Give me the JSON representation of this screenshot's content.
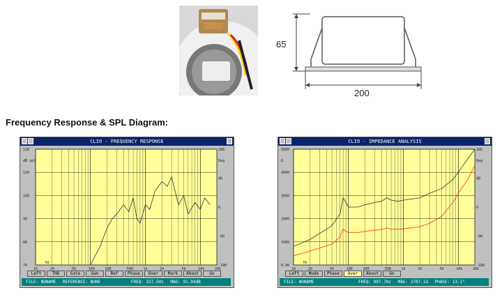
{
  "dimensions": {
    "height_label": "65",
    "width_label": "200"
  },
  "section_title": "Frequency Response & SPL Diagram:",
  "windows": [
    {
      "title": "CLIO - FREQUENCY RESPONSE",
      "buttons": [
        "Left",
        "THD",
        "Gate",
        "Gen",
        "Ref",
        "Phase",
        "Over",
        "Mark",
        "About",
        "Go"
      ],
      "status": {
        "file": "FILE: NONAME",
        "reference": "REFERENCE: NONE",
        "freq": "FREQ: 327.5Hz",
        "value": "MAG: 91.94dB"
      },
      "left_ticks": [
        "120",
        "110",
        "100",
        "90",
        "80",
        "70"
      ],
      "left_unit": "dB spl",
      "right_ticks": [
        "180",
        "90",
        "0",
        "-90",
        "-180"
      ],
      "right_unit": "Deg",
      "x_ticks": [
        "10",
        "20",
        "50",
        "100",
        "200",
        "500",
        "1k",
        "2k",
        "5k",
        "10k",
        "20k"
      ],
      "x_unit": "Hz"
    },
    {
      "title": "CLIO - IMPEDANCE ANALYSIS",
      "buttons": [
        "Left",
        "Mode",
        "Phase",
        "Over",
        "About",
        "Go"
      ],
      "active_button": "Over",
      "status": {
        "file": "FILE: NONAME",
        "freq": "FREQ: 997.7Hz",
        "value": "MAG: 3707.1Ω",
        "phase": "PHASE: 13.1°"
      },
      "left_ticks": [
        "5000",
        "4000",
        "3000",
        "2000",
        "1000",
        "0.00"
      ],
      "left_unit": "Ω",
      "right_ticks": [
        "180",
        "90",
        "0",
        "-90",
        "-180"
      ],
      "right_unit": "Deg",
      "x_ticks": [
        "10",
        "20",
        "50",
        "100",
        "200",
        "500",
        "1k",
        "2k",
        "5k",
        "10k",
        "20k"
      ],
      "x_unit": "Hz"
    }
  ],
  "chart_data": [
    {
      "type": "line",
      "title": "CLIO - FREQUENCY RESPONSE",
      "xscale": "log",
      "xlim": [
        10,
        20000
      ],
      "ylim": [
        70,
        120
      ],
      "series": [
        {
          "x": [
            100,
            150,
            200,
            250,
            300,
            400,
            500,
            600,
            700,
            800,
            1000,
            1200,
            1500,
            2000,
            2500,
            3000,
            4000,
            5000,
            6000,
            8000,
            10000,
            12000,
            15000
          ],
          "y": [
            70,
            78,
            86,
            90,
            92,
            96,
            93,
            99,
            90,
            88,
            96,
            94,
            102,
            106,
            104,
            108,
            96,
            100,
            92,
            97,
            94,
            99,
            96
          ]
        }
      ]
    },
    {
      "type": "line",
      "title": "CLIO - IMPEDANCE ANALYSIS",
      "xscale": "log",
      "xlim": [
        10,
        20000
      ],
      "ylim": [
        0,
        5000
      ],
      "series": [
        {
          "x": [
            10,
            20,
            50,
            70,
            80,
            90,
            100,
            150,
            200,
            300,
            400,
            500,
            600,
            800,
            1000,
            2000,
            3000,
            5000,
            8000,
            10000,
            15000,
            20000
          ],
          "y": [
            800,
            1100,
            1700,
            2200,
            2900,
            2700,
            2500,
            2500,
            2600,
            2700,
            2750,
            2900,
            2800,
            2750,
            2800,
            2900,
            3100,
            3300,
            3700,
            4000,
            4600,
            5000
          ]
        },
        {
          "x": [
            10,
            20,
            50,
            70,
            80,
            90,
            100,
            150,
            200,
            300,
            400,
            500,
            600,
            800,
            1000,
            2000,
            3000,
            5000,
            8000,
            10000,
            15000,
            20000
          ],
          "y": [
            400,
            600,
            900,
            1200,
            1550,
            1450,
            1400,
            1400,
            1450,
            1500,
            1520,
            1600,
            1550,
            1540,
            1560,
            1650,
            1800,
            2100,
            2700,
            3100,
            3700,
            4300
          ]
        }
      ]
    }
  ],
  "colors": {
    "plot_bg": "#ffff99",
    "title_bar": "#0a246a",
    "status_bg": "#008080",
    "series_1": "#333333",
    "series_2": "#ff3300"
  }
}
